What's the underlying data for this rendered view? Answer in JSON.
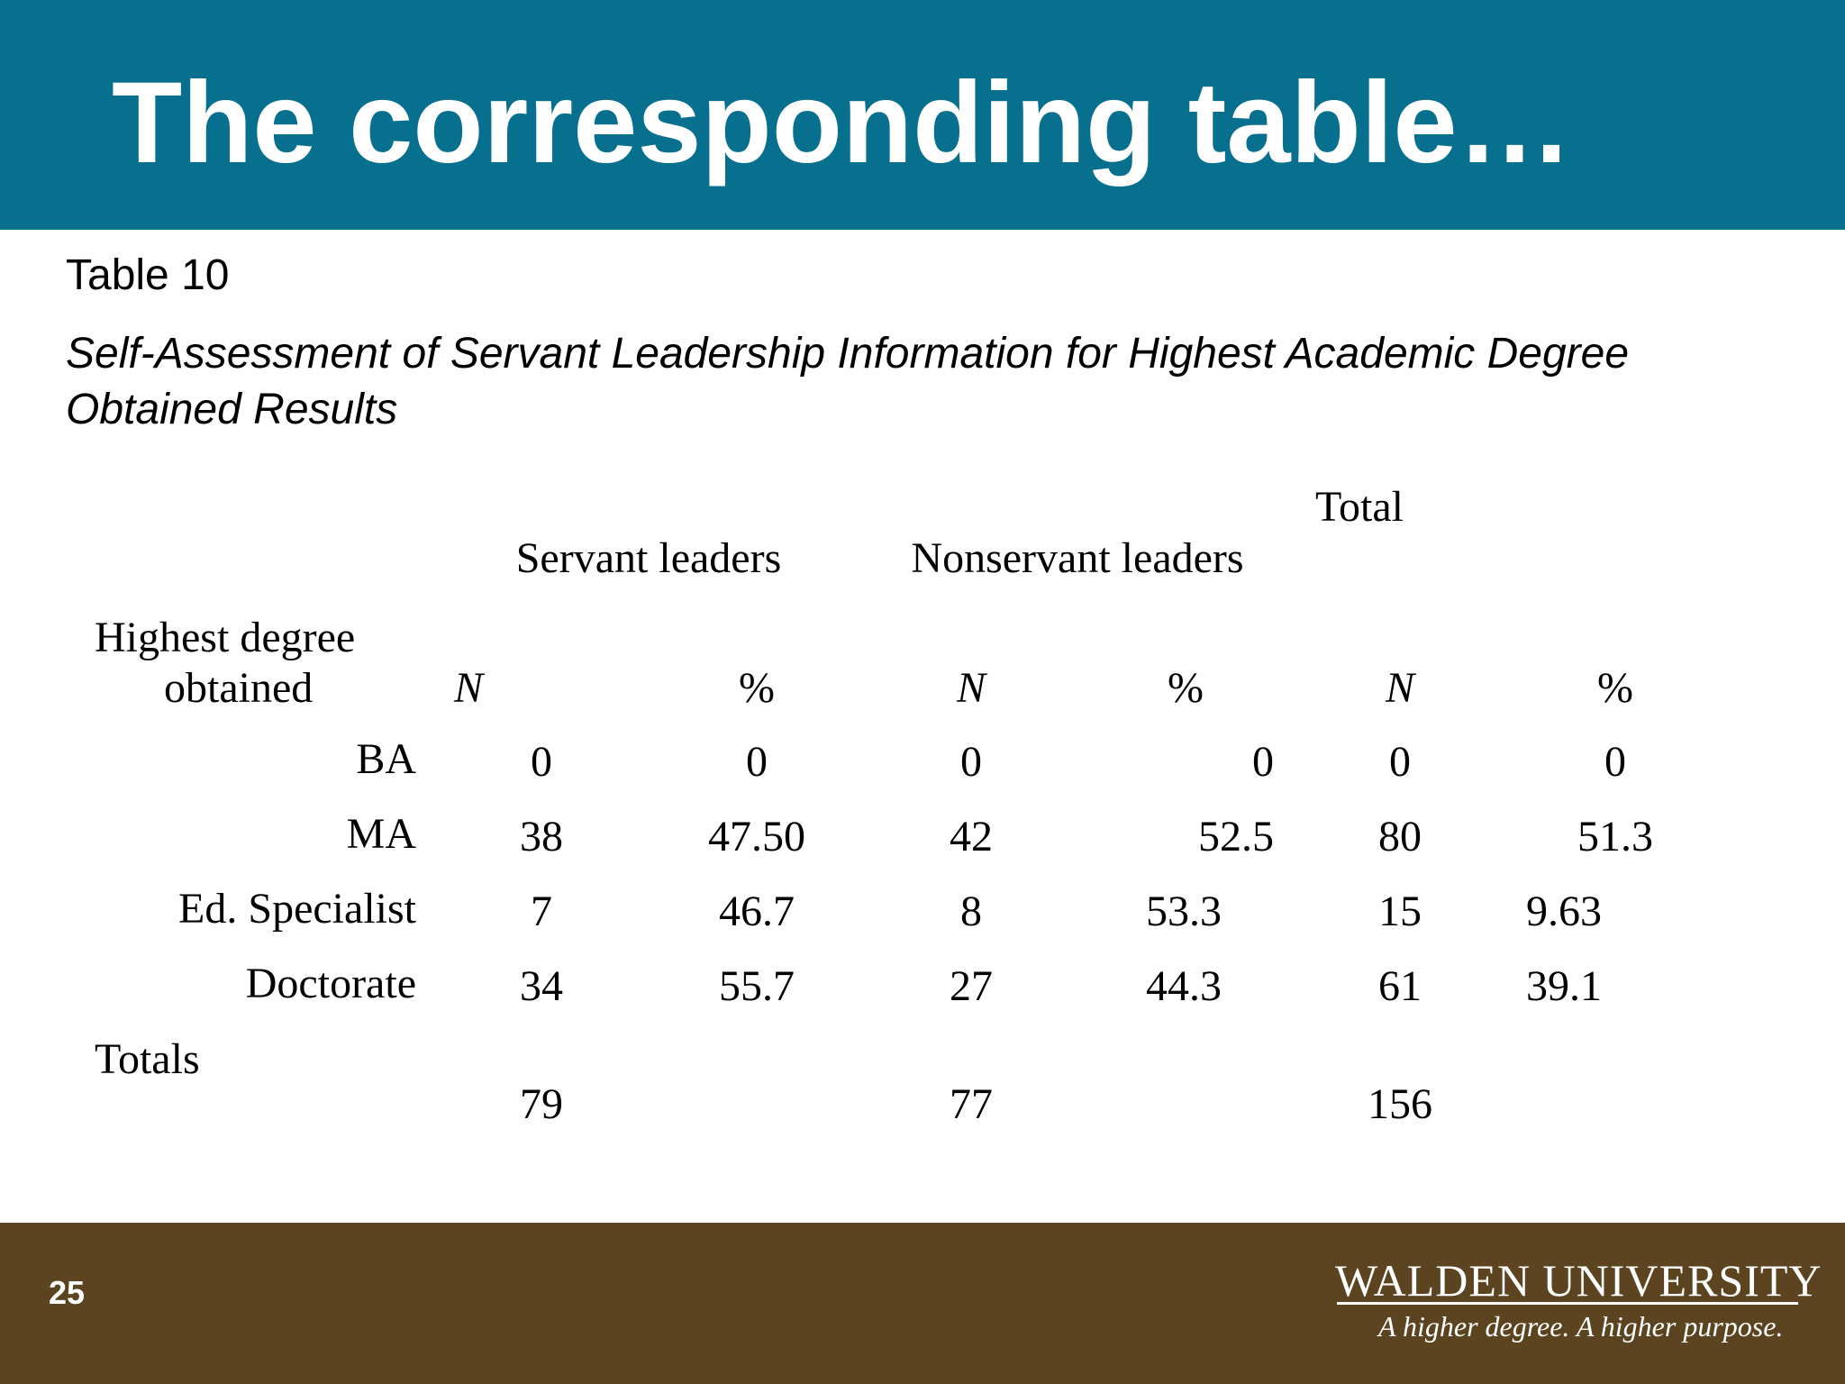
{
  "slide": {
    "title": "The corresponding table…",
    "number": "25"
  },
  "table": {
    "number": "Table 10",
    "caption": "Self-Assessment of Servant Leadership Information for Highest Academic Degree Obtained Results",
    "groups": {
      "servant": "Servant leaders",
      "nonservant": "Nonservant leaders",
      "total": "Total"
    },
    "row_header_line1": "Highest degree",
    "row_header_line2": "obtained",
    "col_n": "N",
    "col_pct": "%",
    "rows": [
      {
        "label": "BA",
        "values": [
          "0",
          "0",
          "0",
          "0",
          "0",
          "0"
        ]
      },
      {
        "label": "MA",
        "values": [
          "38",
          "47.50",
          "42",
          "52.5",
          "80",
          "51.3"
        ]
      },
      {
        "label": "Ed. Specialist",
        "values": [
          "7",
          "46.7",
          "8",
          "53.3",
          "15",
          "9.63"
        ]
      },
      {
        "label": "Doctorate",
        "values": [
          "34",
          "55.7",
          "27",
          "44.3",
          "61",
          "39.1"
        ]
      }
    ],
    "totals": {
      "label": "Totals",
      "servant": "79",
      "nonservant": "77",
      "total": "156"
    }
  },
  "footer": {
    "university": "WALDEN UNIVERSITY",
    "tagline": "A higher degree. A higher purpose."
  }
}
